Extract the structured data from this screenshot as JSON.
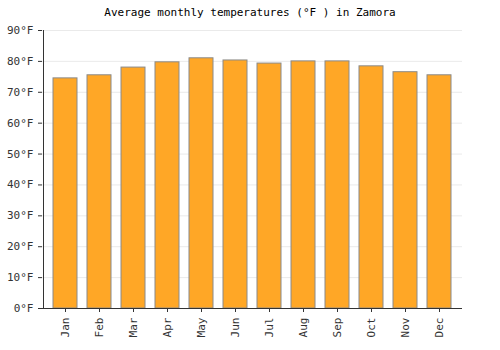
{
  "chart_data": {
    "type": "bar",
    "title": "Average monthly temperatures (°F ) in Zamora",
    "categories": [
      "Jan",
      "Feb",
      "Mar",
      "Apr",
      "May",
      "Jun",
      "Jul",
      "Aug",
      "Sep",
      "Oct",
      "Nov",
      "Dec"
    ],
    "values": [
      74.5,
      75.5,
      78,
      79.7,
      81,
      80.3,
      79.3,
      80,
      80,
      78.4,
      76.5,
      75.5
    ],
    "color": "#ffa726",
    "ylim": [
      0,
      90
    ],
    "yticks": [
      {
        "value": 0,
        "label": "0°F"
      },
      {
        "value": 10,
        "label": "10°F"
      },
      {
        "value": 20,
        "label": "20°F"
      },
      {
        "value": 30,
        "label": "30°F"
      },
      {
        "value": 40,
        "label": "40°F"
      },
      {
        "value": 50,
        "label": "50°F"
      },
      {
        "value": 60,
        "label": "60°F"
      },
      {
        "value": 70,
        "label": "70°F"
      },
      {
        "value": 80,
        "label": "80°F"
      },
      {
        "value": 90,
        "label": "90°F"
      }
    ],
    "grid": true
  }
}
